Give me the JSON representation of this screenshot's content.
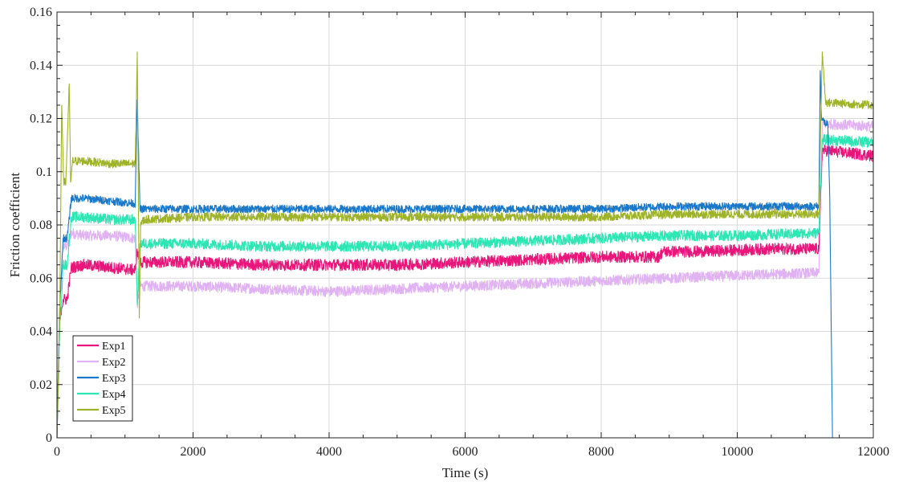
{
  "chart_data": {
    "type": "line",
    "title": "",
    "xlabel": "Time (s)",
    "ylabel": "Friction coefficient",
    "xlim": [
      0,
      12000
    ],
    "ylim": [
      0,
      0.16
    ],
    "xticks": [
      0,
      2000,
      4000,
      6000,
      8000,
      10000,
      12000
    ],
    "yticks": [
      0,
      0.02,
      0.04,
      0.06,
      0.08,
      0.1,
      0.12,
      0.14,
      0.16
    ],
    "xtick_labels": [
      "0",
      "2000",
      "4000",
      "6000",
      "8000",
      "10000",
      "12000"
    ],
    "ytick_labels": [
      "0",
      "0.02",
      "0.04",
      "0.06",
      "0.08",
      "0.1",
      "0.12",
      "0.14",
      "0.16"
    ],
    "grid": true,
    "legend_position": "bottom-left",
    "series": [
      {
        "name": "Exp1",
        "color": "#e8157a",
        "noise": 0.0022,
        "x": [
          0,
          40,
          90,
          150,
          210,
          400,
          800,
          1150,
          1180,
          1220,
          1300,
          2000,
          3000,
          4000,
          5000,
          6000,
          7000,
          8000,
          8850,
          8900,
          9500,
          10500,
          11200,
          11250,
          11300,
          12000
        ],
        "y": [
          0.0,
          0.045,
          0.052,
          0.052,
          0.064,
          0.065,
          0.064,
          0.063,
          0.07,
          0.066,
          0.066,
          0.066,
          0.065,
          0.065,
          0.065,
          0.066,
          0.067,
          0.068,
          0.068,
          0.07,
          0.07,
          0.071,
          0.071,
          0.108,
          0.108,
          0.106
        ]
      },
      {
        "name": "Exp2",
        "color": "#e0b2f2",
        "noise": 0.002,
        "x": [
          0,
          40,
          90,
          150,
          210,
          400,
          800,
          1150,
          1180,
          1220,
          1300,
          2000,
          3000,
          4000,
          5000,
          6000,
          7000,
          8000,
          9000,
          10000,
          11200,
          11250,
          11300,
          12000
        ],
        "y": [
          0.0,
          0.05,
          0.072,
          0.072,
          0.077,
          0.076,
          0.076,
          0.075,
          0.05,
          0.057,
          0.057,
          0.057,
          0.056,
          0.055,
          0.056,
          0.057,
          0.058,
          0.059,
          0.06,
          0.061,
          0.062,
          0.118,
          0.118,
          0.117
        ]
      },
      {
        "name": "Exp3",
        "color": "#1a78c8",
        "noise": 0.0015,
        "x": [
          0,
          40,
          90,
          150,
          210,
          400,
          800,
          1150,
          1180,
          1220,
          1300,
          2000,
          3000,
          4000,
          5000,
          6000,
          7000,
          8000,
          9000,
          10000,
          11200,
          11220,
          11240,
          11300,
          11330,
          11360,
          11400
        ],
        "y": [
          0.0,
          0.048,
          0.075,
          0.075,
          0.09,
          0.09,
          0.089,
          0.088,
          0.127,
          0.086,
          0.086,
          0.086,
          0.086,
          0.086,
          0.086,
          0.086,
          0.086,
          0.086,
          0.087,
          0.087,
          0.087,
          0.138,
          0.12,
          0.118,
          0.118,
          0.09,
          0.0
        ]
      },
      {
        "name": "Exp4",
        "color": "#2ee6b4",
        "noise": 0.002,
        "x": [
          0,
          40,
          90,
          150,
          210,
          400,
          800,
          1150,
          1180,
          1220,
          1300,
          2000,
          3000,
          4000,
          5000,
          6000,
          7000,
          8000,
          9000,
          10000,
          11200,
          11250,
          11300,
          12000
        ],
        "y": [
          0.0,
          0.04,
          0.065,
          0.065,
          0.083,
          0.083,
          0.082,
          0.082,
          0.05,
          0.073,
          0.073,
          0.073,
          0.072,
          0.072,
          0.072,
          0.073,
          0.074,
          0.075,
          0.076,
          0.076,
          0.077,
          0.112,
          0.112,
          0.111
        ]
      },
      {
        "name": "Exp5",
        "color": "#9fb32a",
        "noise": 0.0016,
        "x": [
          0,
          40,
          70,
          100,
          130,
          180,
          200,
          230,
          260,
          400,
          800,
          1150,
          1180,
          1210,
          1230,
          1300,
          2000,
          3000,
          4000,
          5000,
          6000,
          7000,
          8000,
          9000,
          10000,
          11200,
          11250,
          11300,
          12000
        ],
        "y": [
          0.0,
          0.045,
          0.125,
          0.096,
          0.096,
          0.133,
          0.096,
          0.104,
          0.104,
          0.104,
          0.103,
          0.103,
          0.145,
          0.045,
          0.081,
          0.082,
          0.083,
          0.083,
          0.083,
          0.083,
          0.083,
          0.083,
          0.083,
          0.084,
          0.084,
          0.084,
          0.145,
          0.126,
          0.125
        ]
      }
    ]
  }
}
